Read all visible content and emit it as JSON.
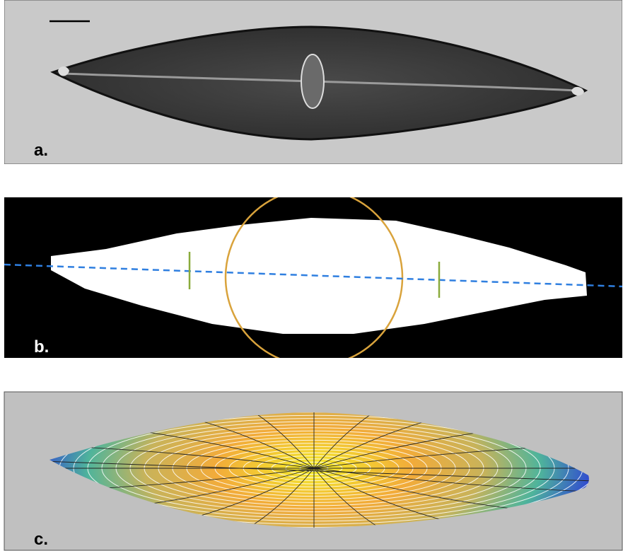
{
  "panels": [
    {
      "label": "a."
    },
    {
      "label": "b."
    },
    {
      "label": "c."
    }
  ]
}
